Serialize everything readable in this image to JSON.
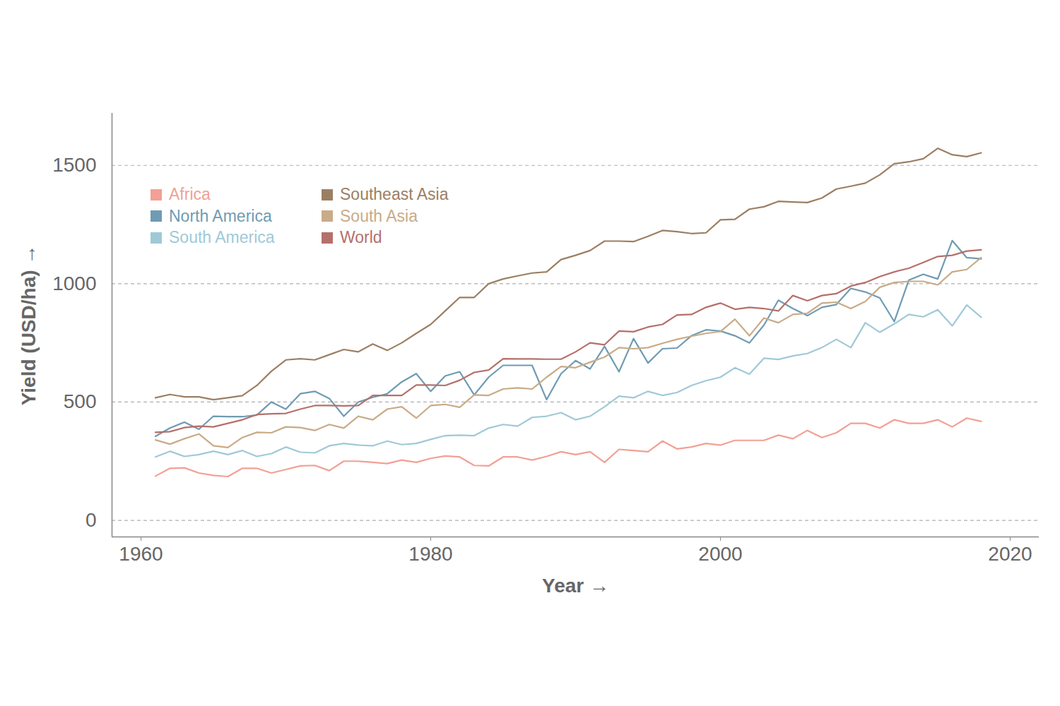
{
  "chart_data": {
    "type": "line",
    "x_label": "Year",
    "y_label": "Yield (USD/ha)",
    "xlim": [
      1958,
      2022
    ],
    "xticks": [
      1960,
      1980,
      2000,
      2020
    ],
    "ylim": [
      -70,
      1720
    ],
    "yticks": [
      0,
      500,
      1000,
      1500
    ],
    "grid": true,
    "legend": "top-left",
    "x": [
      1961,
      1962,
      1963,
      1964,
      1965,
      1966,
      1967,
      1968,
      1969,
      1970,
      1971,
      1972,
      1973,
      1974,
      1975,
      1976,
      1977,
      1978,
      1979,
      1980,
      1981,
      1982,
      1983,
      1984,
      1985,
      1986,
      1987,
      1988,
      1989,
      1990,
      1991,
      1992,
      1993,
      1994,
      1995,
      1996,
      1997,
      1998,
      1999,
      2000,
      2001,
      2002,
      2003,
      2004,
      2005,
      2006,
      2007,
      2008,
      2009,
      2010,
      2011,
      2012,
      2013,
      2014,
      2015,
      2016,
      2017,
      2018
    ],
    "series": [
      {
        "name": "Africa",
        "color": "#f2a094",
        "values": [
          187,
          220,
          222,
          200,
          190,
          185,
          220,
          220,
          200,
          215,
          230,
          232,
          210,
          250,
          250,
          245,
          240,
          255,
          245,
          262,
          272,
          268,
          232,
          230,
          268,
          268,
          255,
          270,
          290,
          278,
          290,
          245,
          300,
          295,
          290,
          335,
          302,
          310,
          325,
          318,
          338,
          338,
          338,
          360,
          345,
          380,
          350,
          370,
          410,
          410,
          390,
          425,
          410,
          410,
          425,
          395,
          432,
          418
        ]
      },
      {
        "name": "North America",
        "color": "#6f9bb3",
        "values": [
          355,
          390,
          415,
          385,
          440,
          438,
          438,
          445,
          500,
          470,
          535,
          545,
          515,
          440,
          500,
          520,
          535,
          585,
          620,
          545,
          610,
          628,
          530,
          605,
          655,
          655,
          655,
          510,
          620,
          675,
          640,
          735,
          628,
          768,
          665,
          725,
          728,
          780,
          805,
          800,
          780,
          750,
          825,
          930,
          895,
          865,
          900,
          912,
          980,
          965,
          940,
          840,
          1015,
          1040,
          1020,
          1182,
          1110,
          1105
        ]
      },
      {
        "name": "South America",
        "color": "#9fc9d8",
        "values": [
          268,
          292,
          270,
          278,
          292,
          278,
          295,
          270,
          282,
          310,
          288,
          285,
          315,
          325,
          318,
          315,
          335,
          320,
          325,
          342,
          358,
          360,
          358,
          390,
          405,
          398,
          435,
          440,
          455,
          425,
          440,
          480,
          525,
          518,
          545,
          528,
          540,
          570,
          590,
          605,
          645,
          618,
          685,
          680,
          695,
          705,
          730,
          765,
          730,
          835,
          795,
          830,
          870,
          860,
          890,
          822,
          910,
          858
        ]
      },
      {
        "name": "Southeast Asia",
        "color": "#9c7f63",
        "values": [
          518,
          532,
          522,
          522,
          510,
          518,
          527,
          570,
          630,
          678,
          683,
          678,
          700,
          722,
          712,
          745,
          718,
          750,
          790,
          828,
          885,
          942,
          942,
          1000,
          1020,
          1033,
          1045,
          1050,
          1102,
          1120,
          1140,
          1180,
          1180,
          1178,
          1200,
          1225,
          1220,
          1212,
          1215,
          1270,
          1272,
          1315,
          1325,
          1348,
          1345,
          1343,
          1362,
          1400,
          1412,
          1425,
          1460,
          1507,
          1515,
          1528,
          1572,
          1545,
          1537,
          1553
        ]
      },
      {
        "name": "South Asia",
        "color": "#c9ab87",
        "values": [
          340,
          322,
          345,
          365,
          315,
          308,
          350,
          372,
          370,
          395,
          392,
          380,
          405,
          390,
          440,
          425,
          470,
          480,
          432,
          485,
          490,
          478,
          530,
          528,
          555,
          560,
          555,
          605,
          650,
          645,
          668,
          690,
          730,
          725,
          730,
          748,
          765,
          778,
          790,
          798,
          850,
          780,
          855,
          835,
          870,
          875,
          918,
          922,
          895,
          925,
          985,
          1005,
          1010,
          1010,
          995,
          1050,
          1060,
          1110
        ]
      },
      {
        "name": "World",
        "color": "#b5706a",
        "values": [
          372,
          375,
          392,
          398,
          395,
          410,
          425,
          447,
          450,
          452,
          470,
          485,
          485,
          484,
          485,
          528,
          528,
          528,
          572,
          572,
          570,
          592,
          625,
          635,
          683,
          682,
          682,
          681,
          681,
          712,
          750,
          742,
          800,
          797,
          817,
          828,
          868,
          870,
          900,
          918,
          892,
          900,
          895,
          885,
          950,
          928,
          950,
          958,
          990,
          1005,
          1030,
          1050,
          1065,
          1090,
          1115,
          1120,
          1138,
          1143
        ]
      }
    ]
  }
}
